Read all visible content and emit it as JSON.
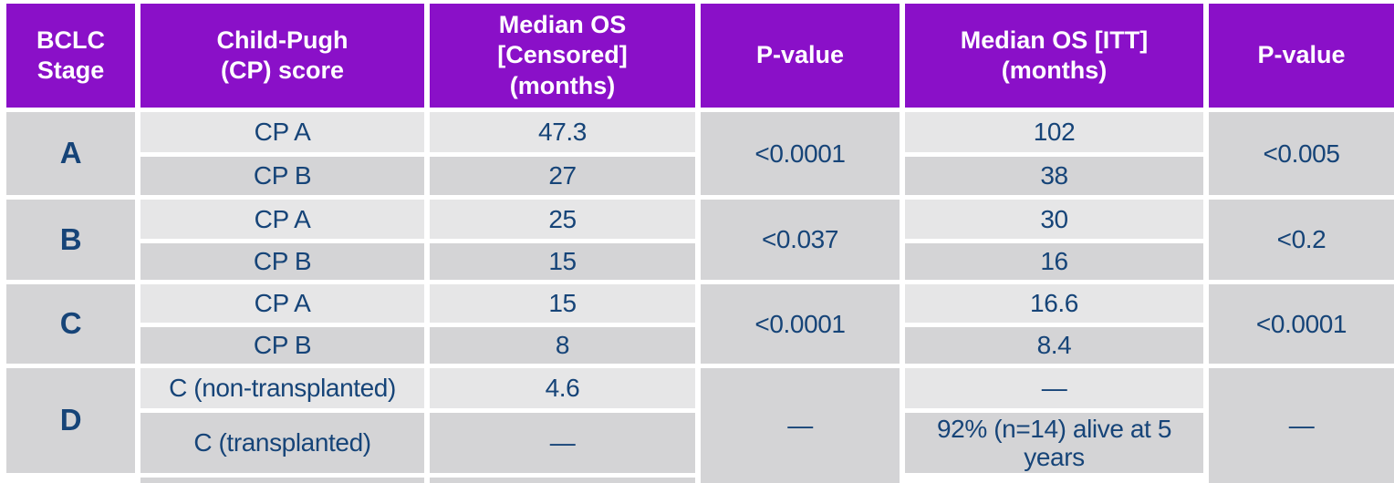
{
  "table": {
    "headers": [
      "BCLC\nStage",
      "Child-Pugh\n(CP) score",
      "Median OS\n[Censored]\n(months)",
      "P-value",
      "Median OS [ITT]\n(months)",
      "P-value"
    ],
    "groups": [
      {
        "stage": "A",
        "rows": [
          {
            "cp": "CP A",
            "os_censored": "47.3",
            "os_itt": "102"
          },
          {
            "cp": "CP B",
            "os_censored": "27",
            "os_itt": "38"
          }
        ],
        "p_censored": "<0.0001",
        "p_itt": "<0.005"
      },
      {
        "stage": "B",
        "rows": [
          {
            "cp": "CP A",
            "os_censored": "25",
            "os_itt": "30"
          },
          {
            "cp": "CP B",
            "os_censored": "15",
            "os_itt": "16"
          }
        ],
        "p_censored": "<0.037",
        "p_itt": "<0.2"
      },
      {
        "stage": "C",
        "rows": [
          {
            "cp": "CP A",
            "os_censored": "15",
            "os_itt": "16.6"
          },
          {
            "cp": "CP B",
            "os_censored": "8",
            "os_itt": "8.4"
          }
        ],
        "p_censored": "<0.0001",
        "p_itt": "<0.0001"
      },
      {
        "stage": "D",
        "rows": [
          {
            "cp": "C (non-transplanted)",
            "os_censored": "4.6",
            "os_itt": "—"
          },
          {
            "cp": "C (transplanted)",
            "os_censored": "—",
            "os_itt": "92% (n=14) alive at 5 years"
          }
        ],
        "p_censored": "—",
        "p_itt": "—"
      }
    ],
    "colors": {
      "header_bg": "#8A10C8",
      "header_text": "#FFFFFF",
      "row_light": "#E6E6E7",
      "row_dark": "#D4D4D6",
      "text_navy": "#164478"
    }
  }
}
